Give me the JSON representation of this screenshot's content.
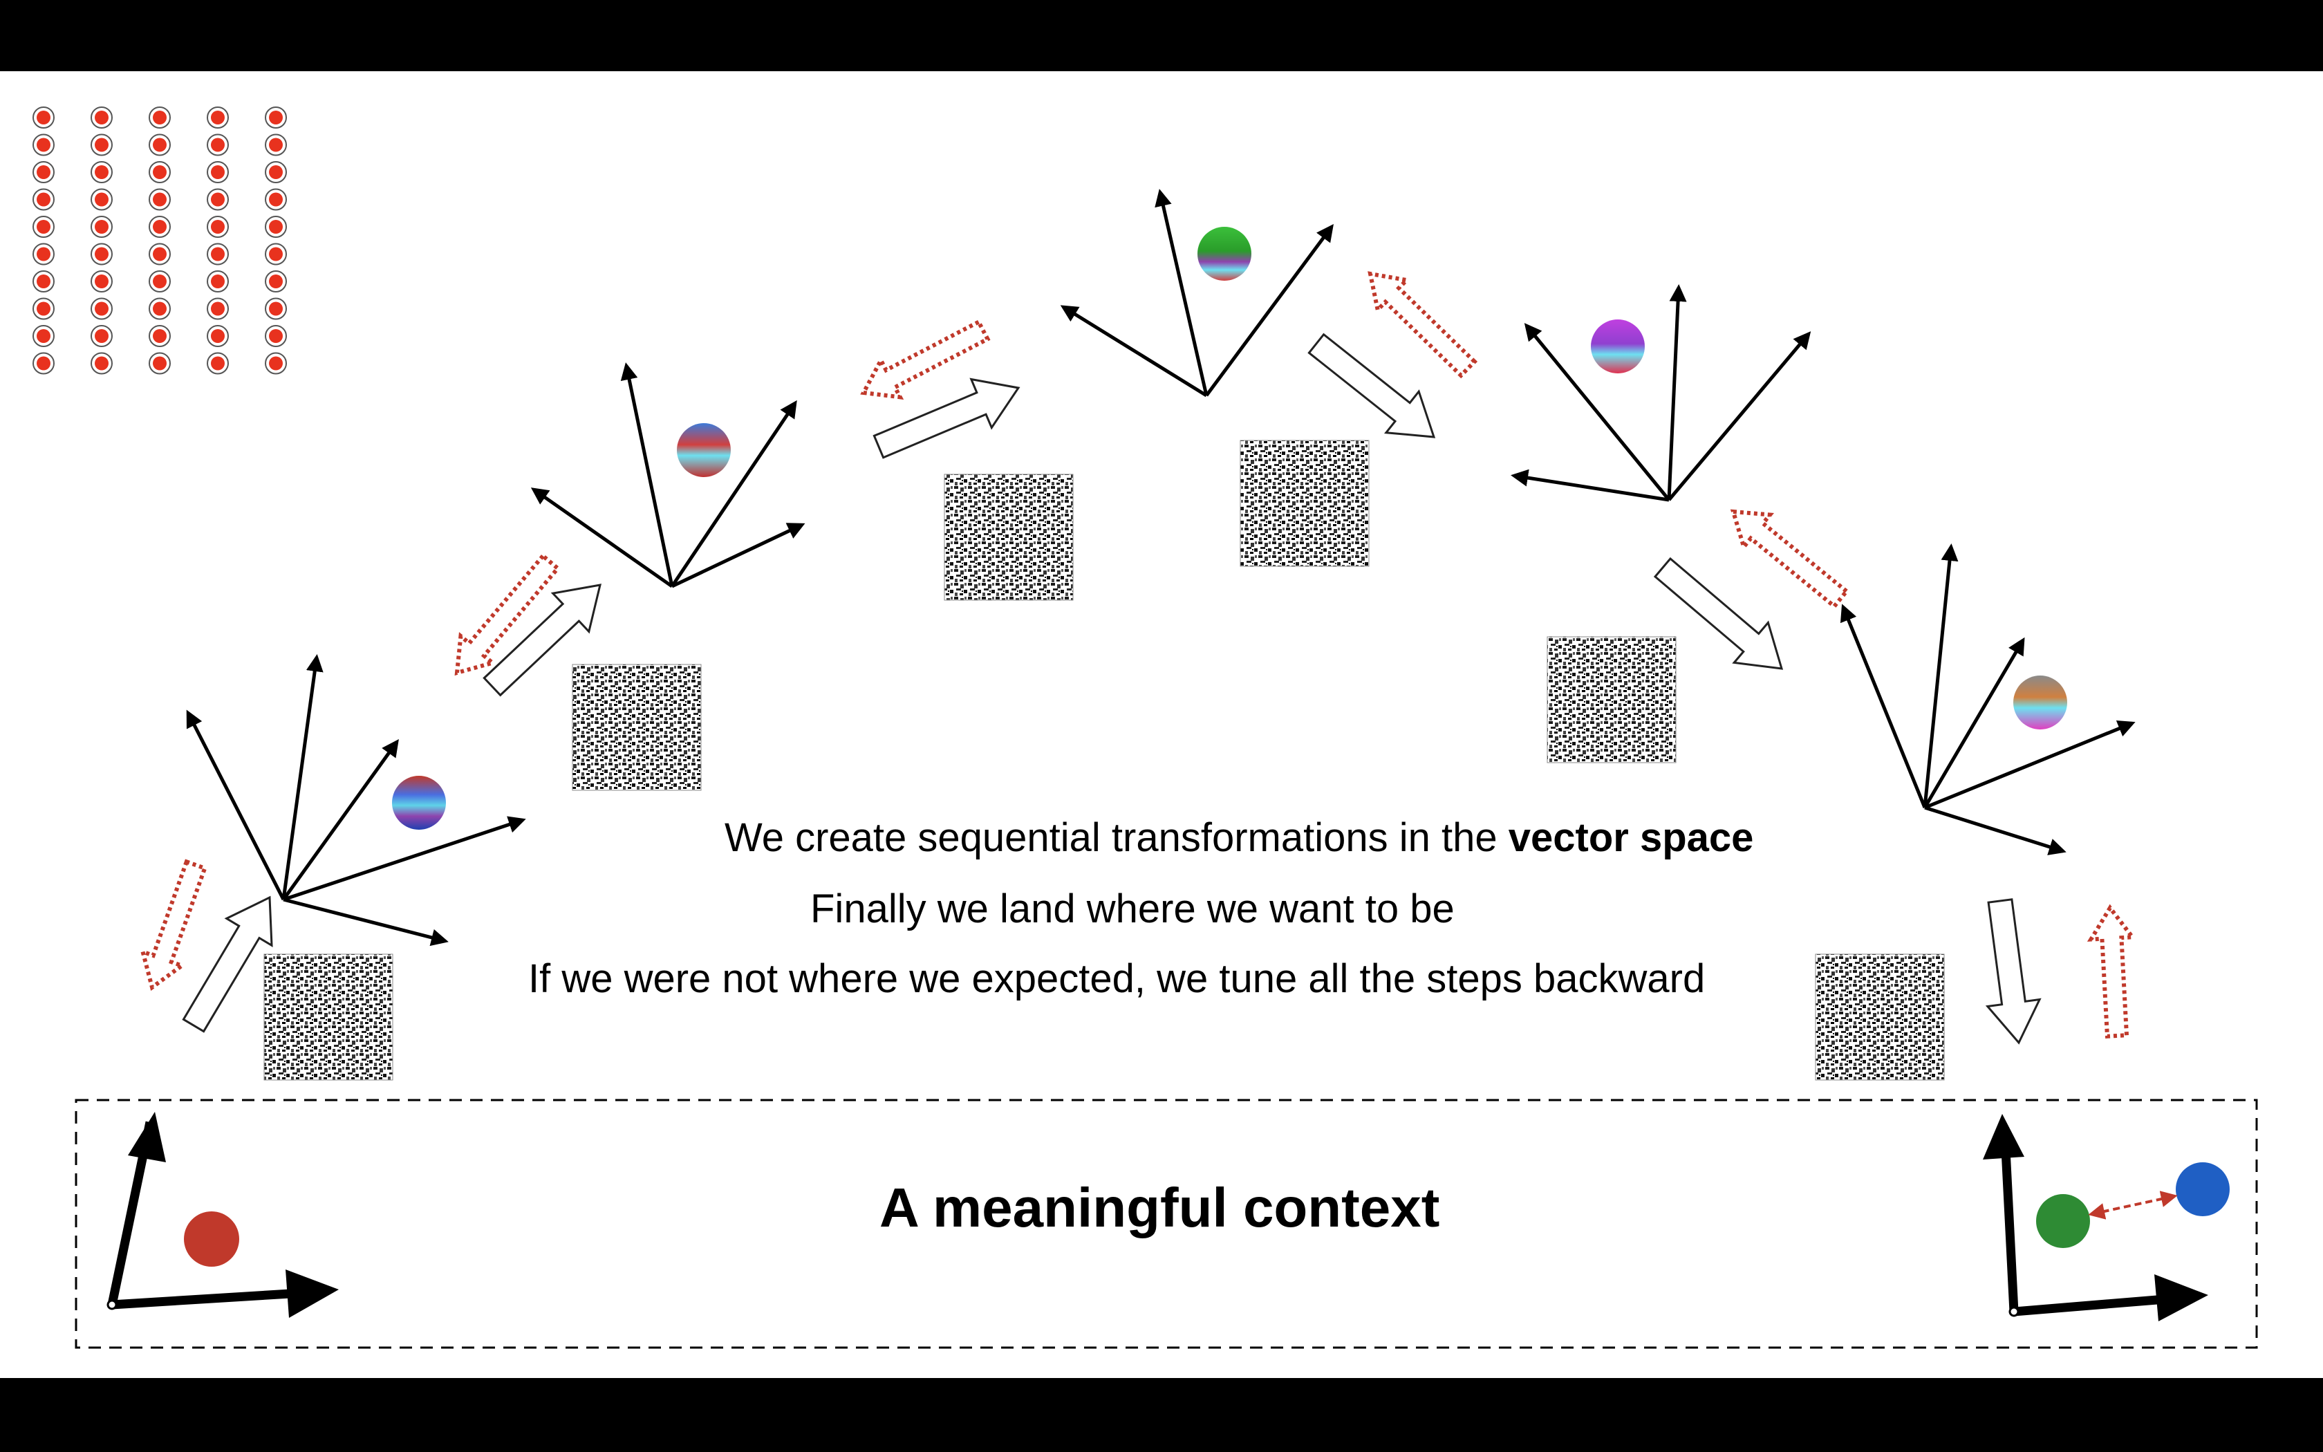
{
  "captions": {
    "line1_prefix": "We create sequential transformations in the ",
    "line1_bold": "vector space",
    "line2": "Finally we land where we want to be",
    "line3": "If we were not where we expected, we tune all the steps backward"
  },
  "context_box": {
    "title": "A meaningful context"
  },
  "colors": {
    "forward_arrow_fill": "#ffffff",
    "forward_arrow_stroke": "#222222",
    "backward_arrow": "#c0392b",
    "context_red_dot": "#c0392b",
    "context_green_dot": "#2e8b34",
    "context_blue_dot": "#1f5fc4",
    "input_grid_dot": "#e8321e"
  },
  "icons": {
    "input_grid": "input-neuron-grid-icon",
    "weight_matrix": "weight-matrix-texture-icon",
    "embedding_ball": "gradient-ball-icon"
  }
}
